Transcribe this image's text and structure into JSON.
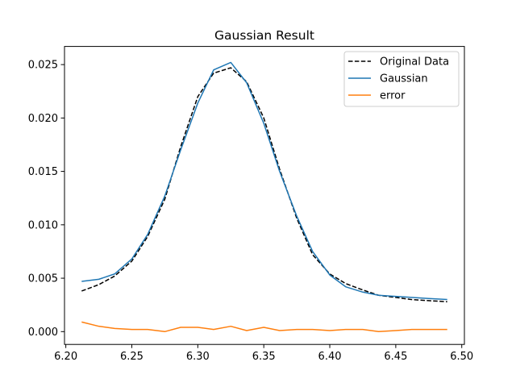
{
  "chart_data": {
    "type": "line",
    "title": "Gaussian Result",
    "xlabel": "",
    "ylabel": "",
    "xlim": [
      6.199,
      6.502
    ],
    "ylim": [
      -0.0012,
      0.0267
    ],
    "grid": false,
    "legend_position": "top-right",
    "x_ticks": [
      6.2,
      6.25,
      6.3,
      6.35,
      6.4,
      6.45,
      6.5
    ],
    "x_tick_labels": [
      "6.20",
      "6.25",
      "6.30",
      "6.35",
      "6.40",
      "6.45",
      "6.50"
    ],
    "y_ticks": [
      0.0,
      0.005,
      0.01,
      0.015,
      0.02,
      0.025
    ],
    "y_tick_labels": [
      "0.000",
      "0.005",
      "0.010",
      "0.015",
      "0.020",
      "0.025"
    ],
    "x": [
      6.212,
      6.225,
      6.237,
      6.25,
      6.262,
      6.275,
      6.287,
      6.3,
      6.312,
      6.325,
      6.337,
      6.35,
      6.362,
      6.375,
      6.387,
      6.4,
      6.412,
      6.425,
      6.437,
      6.45,
      6.462,
      6.475,
      6.489
    ],
    "series": [
      {
        "name": "Original Data",
        "color": "#000000",
        "dashed": true,
        "values": [
          0.0038,
          0.0044,
          0.0052,
          0.0066,
          0.0089,
          0.0124,
          0.0173,
          0.022,
          0.0242,
          0.0247,
          0.0234,
          0.02,
          0.0152,
          0.0106,
          0.0072,
          0.0054,
          0.0045,
          0.0039,
          0.0034,
          0.0032,
          0.003,
          0.0029,
          0.0028
        ]
      },
      {
        "name": "Gaussian",
        "color": "#1f77b4",
        "dashed": false,
        "values": [
          0.0047,
          0.0049,
          0.0054,
          0.0068,
          0.0091,
          0.0127,
          0.017,
          0.0214,
          0.0245,
          0.0252,
          0.0233,
          0.0195,
          0.015,
          0.0108,
          0.0075,
          0.0053,
          0.0042,
          0.0037,
          0.0034,
          0.0033,
          0.0032,
          0.0031,
          0.003
        ]
      },
      {
        "name": "error",
        "color": "#ff7f0e",
        "dashed": false,
        "values": [
          0.0009,
          0.0005,
          0.0003,
          0.0002,
          0.0002,
          0.0,
          0.0004,
          0.0004,
          0.0002,
          0.0005,
          0.0001,
          0.0004,
          0.0001,
          0.0002,
          0.0002,
          0.0001,
          0.0002,
          0.0002,
          0.0,
          0.0001,
          0.0002,
          0.0002,
          0.0002
        ]
      }
    ]
  }
}
